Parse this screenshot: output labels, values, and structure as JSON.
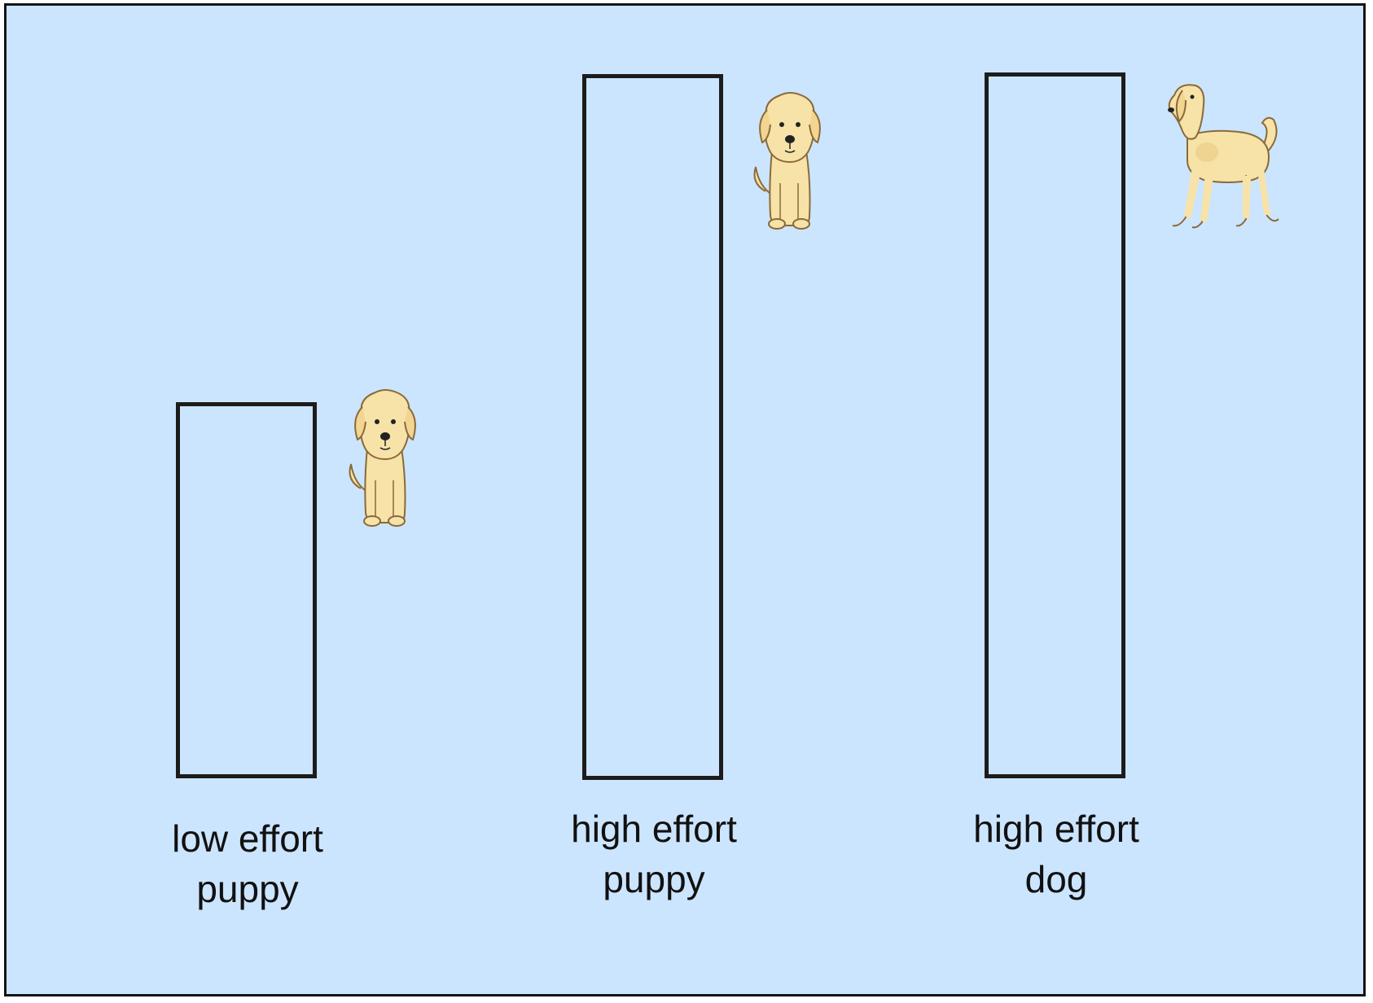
{
  "colors": {
    "background": "#cce5fe",
    "border": "#141414",
    "dog_fill": "#f7e2a8",
    "dog_stroke": "#8a6a3a"
  },
  "conditions": [
    {
      "line1": "low effort",
      "line2": "puppy",
      "icon": "puppy-icon",
      "relative_effort": 0.53
    },
    {
      "line1": "high effort",
      "line2": "puppy",
      "icon": "puppy-icon",
      "relative_effort": 1.0
    },
    {
      "line1": "high effort",
      "line2": "dog",
      "icon": "dog-icon",
      "relative_effort": 1.0
    }
  ]
}
